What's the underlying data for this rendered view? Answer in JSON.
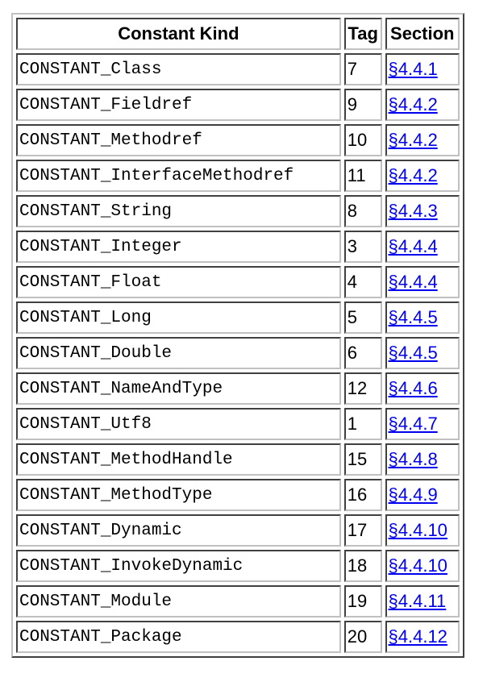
{
  "table": {
    "headers": {
      "kind": "Constant Kind",
      "tag": "Tag",
      "section": "Section"
    },
    "rows": [
      {
        "kind": "CONSTANT_Class",
        "tag": "7",
        "section": "§4.4.1"
      },
      {
        "kind": "CONSTANT_Fieldref",
        "tag": "9",
        "section": "§4.4.2"
      },
      {
        "kind": "CONSTANT_Methodref",
        "tag": "10",
        "section": "§4.4.2"
      },
      {
        "kind": "CONSTANT_InterfaceMethodref",
        "tag": "11",
        "section": "§4.4.2"
      },
      {
        "kind": "CONSTANT_String",
        "tag": "8",
        "section": "§4.4.3"
      },
      {
        "kind": "CONSTANT_Integer",
        "tag": "3",
        "section": "§4.4.4"
      },
      {
        "kind": "CONSTANT_Float",
        "tag": "4",
        "section": "§4.4.4"
      },
      {
        "kind": "CONSTANT_Long",
        "tag": "5",
        "section": "§4.4.5"
      },
      {
        "kind": "CONSTANT_Double",
        "tag": "6",
        "section": "§4.4.5"
      },
      {
        "kind": "CONSTANT_NameAndType",
        "tag": "12",
        "section": "§4.4.6"
      },
      {
        "kind": "CONSTANT_Utf8",
        "tag": "1",
        "section": "§4.4.7"
      },
      {
        "kind": "CONSTANT_MethodHandle",
        "tag": "15",
        "section": "§4.4.8"
      },
      {
        "kind": "CONSTANT_MethodType",
        "tag": "16",
        "section": "§4.4.9"
      },
      {
        "kind": "CONSTANT_Dynamic",
        "tag": "17",
        "section": "§4.4.10"
      },
      {
        "kind": "CONSTANT_InvokeDynamic",
        "tag": "18",
        "section": "§4.4.10"
      },
      {
        "kind": "CONSTANT_Module",
        "tag": "19",
        "section": "§4.4.11"
      },
      {
        "kind": "CONSTANT_Package",
        "tag": "20",
        "section": "§4.4.12"
      }
    ]
  },
  "colors": {
    "link": "#0000ee",
    "text": "#000000"
  }
}
